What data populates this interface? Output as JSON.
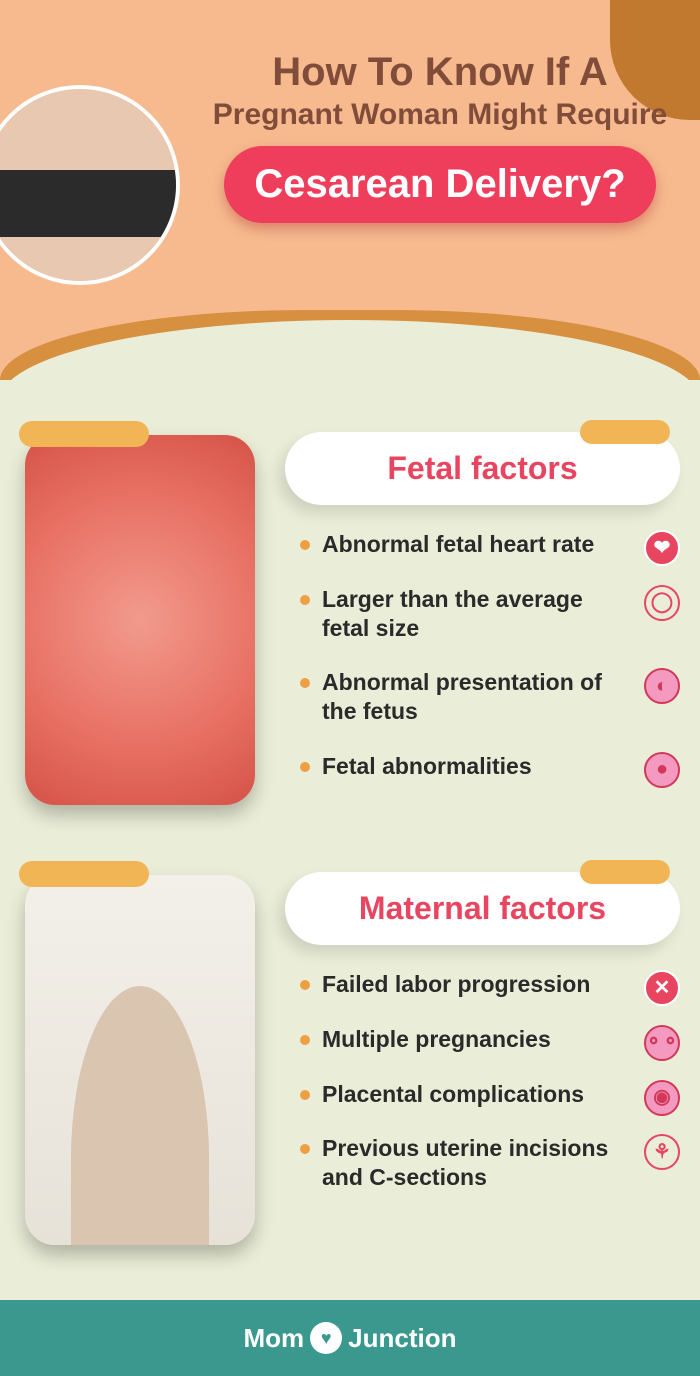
{
  "colors": {
    "header_bg": "#f6ba8e",
    "header_wave": "#d79040",
    "header_corner": "#c17930",
    "body_bg": "#eaeed8",
    "pill_bg": "#ee3e5c",
    "accent_orange": "#f2b556",
    "heading_text": "#e84560",
    "title_text": "#814d3a",
    "footer_bg": "#3a988e"
  },
  "title": {
    "line1": "How To Know If A",
    "line2": "Pregnant Woman Might Require",
    "pill": "Cesarean Delivery?"
  },
  "sections": [
    {
      "id": "fetal",
      "heading": "Fetal factors",
      "items": [
        {
          "text": "Abnormal fetal heart rate",
          "icon": "❤",
          "icon_bg": "#e84560",
          "icon_color": "#fff"
        },
        {
          "text": "Larger than the average fetal size",
          "icon": "◯",
          "icon_bg": "transparent",
          "icon_color": "#e84560"
        },
        {
          "text": "Abnormal presentation of the fetus",
          "icon": "◐",
          "icon_bg": "#f49ac0",
          "icon_color": "#d1385a"
        },
        {
          "text": "Fetal abnormalities",
          "icon": "●",
          "icon_bg": "#f49ac0",
          "icon_color": "#d1385a"
        }
      ]
    },
    {
      "id": "maternal",
      "heading": "Maternal factors",
      "items": [
        {
          "text": "Failed labor progression",
          "icon": "✕",
          "icon_bg": "#e84560",
          "icon_color": "#fff"
        },
        {
          "text": "Multiple pregnancies",
          "icon": "⚬⚬",
          "icon_bg": "#f49ac0",
          "icon_color": "#d1385a"
        },
        {
          "text": "Placental complications",
          "icon": "◉",
          "icon_bg": "#f49ac0",
          "icon_color": "#d1385a"
        },
        {
          "text": "Previous uterine incisions and C-sections",
          "icon": "⚘",
          "icon_bg": "transparent",
          "icon_color": "#e84560"
        }
      ]
    }
  ],
  "footer": {
    "brand_left": "Mom",
    "brand_right": "Junction",
    "badge": "♥"
  }
}
